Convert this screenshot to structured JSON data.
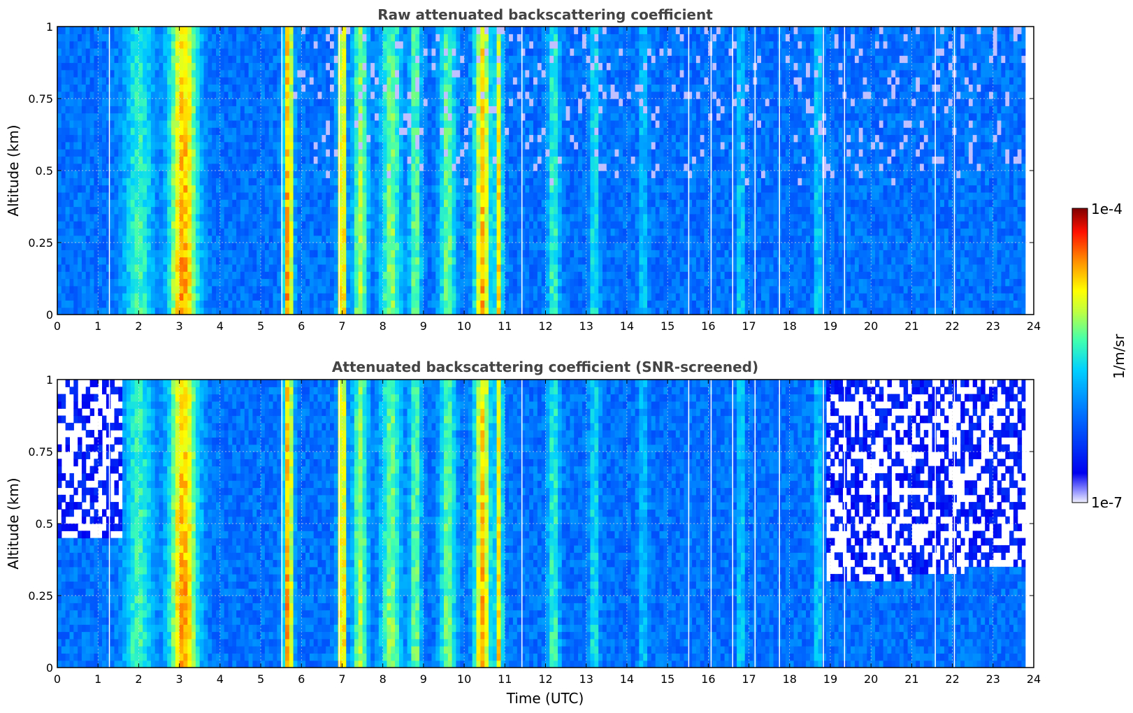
{
  "chart_data": [
    {
      "type": "heatmap",
      "title": "Raw attenuated backscattering coefficient",
      "xlabel": "",
      "ylabel": "Altitude (km)",
      "xlim": [
        0,
        24
      ],
      "ylim": [
        0,
        1
      ],
      "xticks": [
        0,
        1,
        2,
        3,
        4,
        5,
        6,
        7,
        8,
        9,
        10,
        11,
        12,
        13,
        14,
        15,
        16,
        17,
        18,
        19,
        20,
        21,
        22,
        23,
        24
      ],
      "yticks": [
        0,
        0.25,
        0.5,
        0.75,
        1
      ],
      "ytick_labels": [
        "0",
        "0.25",
        "0.5",
        "0.75",
        "1"
      ],
      "grid": true,
      "time_range_utc": [
        0,
        23.8
      ],
      "gaps_utc": [
        1.28,
        5.52,
        6.93,
        11.42,
        15.52,
        16.07,
        16.6,
        17.15,
        17.75,
        18.83,
        19.35,
        21.58,
        22.05
      ],
      "bright_bands_utc": [
        {
          "t": 2.0,
          "w": 0.35,
          "level": 0.55
        },
        {
          "t": 3.1,
          "w": 0.35,
          "level": 0.82
        },
        {
          "t": 5.68,
          "w": 0.12,
          "level": 0.85
        },
        {
          "t": 7.0,
          "w": 0.1,
          "level": 0.85
        },
        {
          "t": 7.45,
          "w": 0.18,
          "level": 0.65
        },
        {
          "t": 8.2,
          "w": 0.25,
          "level": 0.62
        },
        {
          "t": 8.8,
          "w": 0.15,
          "level": 0.6
        },
        {
          "t": 9.6,
          "w": 0.2,
          "level": 0.6
        },
        {
          "t": 10.45,
          "w": 0.2,
          "level": 0.8
        },
        {
          "t": 10.85,
          "w": 0.1,
          "level": 0.75
        },
        {
          "t": 12.2,
          "w": 0.15,
          "level": 0.55
        },
        {
          "t": 13.2,
          "w": 0.12,
          "level": 0.5
        },
        {
          "t": 14.4,
          "w": 0.1,
          "level": 0.45
        },
        {
          "t": 16.8,
          "w": 0.08,
          "level": 0.5
        },
        {
          "t": 18.7,
          "w": 0.08,
          "level": 0.5
        }
      ]
    },
    {
      "type": "heatmap",
      "title": "Attenuated backscattering coefficient (SNR-screened)",
      "xlabel": "Time (UTC)",
      "ylabel": "Altitude (km)",
      "xlim": [
        0,
        24
      ],
      "ylim": [
        0,
        1
      ],
      "xticks": [
        0,
        1,
        2,
        3,
        4,
        5,
        6,
        7,
        8,
        9,
        10,
        11,
        12,
        13,
        14,
        15,
        16,
        17,
        18,
        19,
        20,
        21,
        22,
        23,
        24
      ],
      "yticks": [
        0,
        0.25,
        0.5,
        0.75,
        1
      ],
      "ytick_labels": [
        "0",
        "0.25",
        "0.5",
        "0.75",
        "1"
      ],
      "grid": true,
      "time_range_utc": [
        0,
        23.8
      ],
      "screened_top_km": [
        {
          "t_from": 0,
          "t_to": 1.6,
          "alt": 0.46
        },
        {
          "t_from": 18.9,
          "t_to": 19.3,
          "alt": 0.29
        },
        {
          "t_from": 19.3,
          "t_to": 21.0,
          "alt": 0.3
        },
        {
          "t_from": 21.0,
          "t_to": 22.3,
          "alt": 0.33
        },
        {
          "t_from": 22.3,
          "t_to": 23.8,
          "alt": 0.35
        }
      ]
    }
  ],
  "colorbar": {
    "label": "1/m/sr",
    "max_label": "1e-4",
    "min_label": "1e-7",
    "colormap": "jet",
    "scale": "log"
  }
}
